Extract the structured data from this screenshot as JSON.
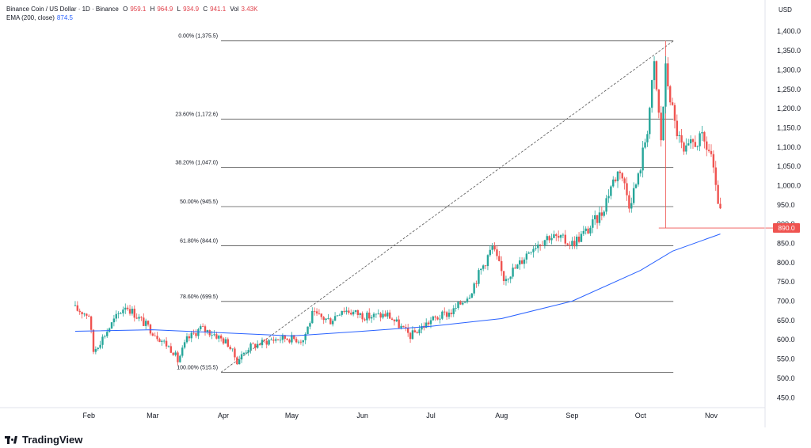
{
  "header": {
    "symbol": "Binance Coin / US Dollar · 1D · Binance",
    "o_label": "O",
    "o_value": "959.1",
    "h_label": "H",
    "h_value": "964.9",
    "l_label": "L",
    "l_value": "934.9",
    "c_label": "C",
    "c_value": "941.1",
    "vol_label": "Vol",
    "vol_value": "3.43K",
    "ema_label": "EMA (200, close)",
    "ema_value": "874.5"
  },
  "currency": "USD",
  "price_badge": "890.0",
  "brand": "TradingView",
  "colors": {
    "up": "#26a69a",
    "down": "#ef5350",
    "ema": "#2962ff",
    "fib": "#555555"
  },
  "chart_data": {
    "type": "candlestick",
    "ylim": [
      430,
      1420
    ],
    "y_ticks": [
      450,
      500,
      550,
      600,
      650,
      700,
      750,
      800,
      850,
      900,
      950,
      1000,
      1050,
      1100,
      1150,
      1200,
      1250,
      1300,
      1350,
      1400
    ],
    "y_tick_labels": [
      "450.0",
      "500.0",
      "550.0",
      "600.0",
      "650.0",
      "700.0",
      "750.0",
      "800.0",
      "850.0",
      "900.0",
      "950.0",
      "1,000.0",
      "1,050.0",
      "1,100.0",
      "1,150.0",
      "1,200.0",
      "1,250.0",
      "1,300.0",
      "1,350.0",
      "1,400.0"
    ],
    "x_labels": [
      "Feb",
      "Mar",
      "Apr",
      "May",
      "Jun",
      "Jul",
      "Aug",
      "Sep",
      "Oct",
      "Nov"
    ],
    "fib_levels": [
      {
        "label": "0.00% (1,375.5)",
        "value": 1375.5
      },
      {
        "label": "23.60% (1,172.6)",
        "value": 1172.6
      },
      {
        "label": "38.20% (1,047.0)",
        "value": 1047.0
      },
      {
        "label": "50.00% (945.5)",
        "value": 945.5
      },
      {
        "label": "61.80% (844.0)",
        "value": 844.0
      },
      {
        "label": "78.60% (699.5)",
        "value": 699.5
      },
      {
        "label": "100.00% (515.5)",
        "value": 515.5
      }
    ],
    "price_line": 890.0,
    "anchors": [
      {
        "date": "2025-01-26",
        "close": 680
      },
      {
        "date": "2025-02-01",
        "close": 665
      },
      {
        "date": "2025-02-03",
        "close": 570
      },
      {
        "date": "2025-02-07",
        "close": 605
      },
      {
        "date": "2025-02-12",
        "close": 650
      },
      {
        "date": "2025-02-17",
        "close": 690
      },
      {
        "date": "2025-02-24",
        "close": 650
      },
      {
        "date": "2025-03-03",
        "close": 610
      },
      {
        "date": "2025-03-10",
        "close": 570
      },
      {
        "date": "2025-03-12",
        "close": 545
      },
      {
        "date": "2025-03-16",
        "close": 600
      },
      {
        "date": "2025-03-22",
        "close": 630
      },
      {
        "date": "2025-03-28",
        "close": 615
      },
      {
        "date": "2025-04-03",
        "close": 590
      },
      {
        "date": "2025-04-07",
        "close": 545
      },
      {
        "date": "2025-04-12",
        "close": 580
      },
      {
        "date": "2025-04-22",
        "close": 600
      },
      {
        "date": "2025-04-28",
        "close": 605
      },
      {
        "date": "2025-05-06",
        "close": 600
      },
      {
        "date": "2025-05-10",
        "close": 665
      },
      {
        "date": "2025-05-18",
        "close": 650
      },
      {
        "date": "2025-05-23",
        "close": 680
      },
      {
        "date": "2025-06-03",
        "close": 660
      },
      {
        "date": "2025-06-12",
        "close": 665
      },
      {
        "date": "2025-06-22",
        "close": 610
      },
      {
        "date": "2025-07-01",
        "close": 650
      },
      {
        "date": "2025-07-11",
        "close": 675
      },
      {
        "date": "2025-07-18",
        "close": 720
      },
      {
        "date": "2025-07-22",
        "close": 770
      },
      {
        "date": "2025-07-28",
        "close": 840
      },
      {
        "date": "2025-08-02",
        "close": 760
      },
      {
        "date": "2025-08-08",
        "close": 790
      },
      {
        "date": "2025-08-14",
        "close": 840
      },
      {
        "date": "2025-08-22",
        "close": 870
      },
      {
        "date": "2025-08-27",
        "close": 860
      },
      {
        "date": "2025-09-01",
        "close": 850
      },
      {
        "date": "2025-09-08",
        "close": 885
      },
      {
        "date": "2025-09-14",
        "close": 930
      },
      {
        "date": "2025-09-18",
        "close": 1000
      },
      {
        "date": "2025-09-22",
        "close": 1045
      },
      {
        "date": "2025-09-26",
        "close": 955
      },
      {
        "date": "2025-09-30",
        "close": 1020
      },
      {
        "date": "2025-10-04",
        "close": 1150
      },
      {
        "date": "2025-10-07",
        "close": 1310
      },
      {
        "date": "2025-10-10",
        "close": 1120
      },
      {
        "date": "2025-10-12",
        "close": 1300
      },
      {
        "date": "2025-10-16",
        "close": 1160
      },
      {
        "date": "2025-10-20",
        "close": 1080
      },
      {
        "date": "2025-10-24",
        "close": 1110
      },
      {
        "date": "2025-10-28",
        "close": 1120
      },
      {
        "date": "2025-11-01",
        "close": 1080
      },
      {
        "date": "2025-11-03",
        "close": 985
      },
      {
        "date": "2025-11-05",
        "close": 941
      }
    ],
    "ema": [
      {
        "date": "2025-01-26",
        "value": 622
      },
      {
        "date": "2025-03-01",
        "value": 626
      },
      {
        "date": "2025-04-01",
        "value": 618
      },
      {
        "date": "2025-05-01",
        "value": 610
      },
      {
        "date": "2025-06-01",
        "value": 622
      },
      {
        "date": "2025-07-01",
        "value": 635
      },
      {
        "date": "2025-08-01",
        "value": 655
      },
      {
        "date": "2025-09-01",
        "value": 700
      },
      {
        "date": "2025-10-01",
        "value": 780
      },
      {
        "date": "2025-10-15",
        "value": 830
      },
      {
        "date": "2025-11-05",
        "value": 874.5
      }
    ]
  }
}
